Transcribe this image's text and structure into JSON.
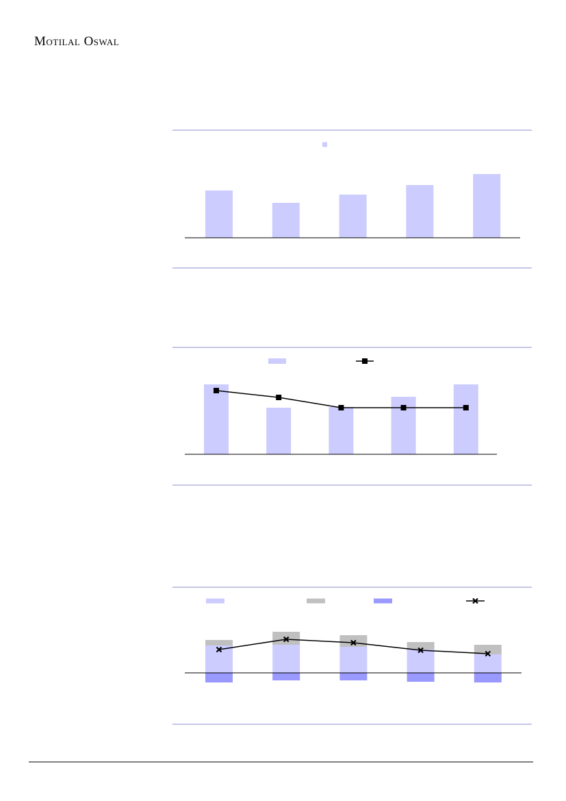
{
  "header": {
    "title": "Motilal Oswal"
  },
  "chart_data": [
    {
      "type": "bar",
      "categories": [
        null,
        null,
        null,
        null,
        null
      ],
      "series": [
        {
          "color": "#ccccff",
          "values": [
            69,
            51,
            63,
            77,
            93
          ]
        }
      ]
    },
    {
      "type": "combo",
      "categories": [
        null,
        null,
        null,
        null,
        null
      ],
      "series": [
        {
          "color": "#ccccff",
          "values": [
            102,
            68,
            69,
            84,
            102
          ]
        },
        {
          "color": "#000000",
          "type": "line",
          "marker": "square",
          "values": [
            93,
            83,
            68,
            68,
            68
          ]
        }
      ]
    },
    {
      "type": "stacked_bar",
      "categories": [
        null,
        null,
        null,
        null,
        null
      ],
      "series": [
        {
          "color": "#ccccff",
          "values": [
            40,
            41,
            38,
            34,
            27
          ]
        },
        {
          "color": "#c0c0c0",
          "values": [
            8,
            19,
            17,
            11,
            14
          ]
        },
        {
          "color": "#9999ff",
          "values": [
            -14,
            -11,
            -11,
            -13,
            -14
          ]
        },
        {
          "color": "#000000",
          "type": "line",
          "marker": "x",
          "values": [
            34,
            49,
            44,
            33,
            28
          ]
        }
      ]
    }
  ]
}
